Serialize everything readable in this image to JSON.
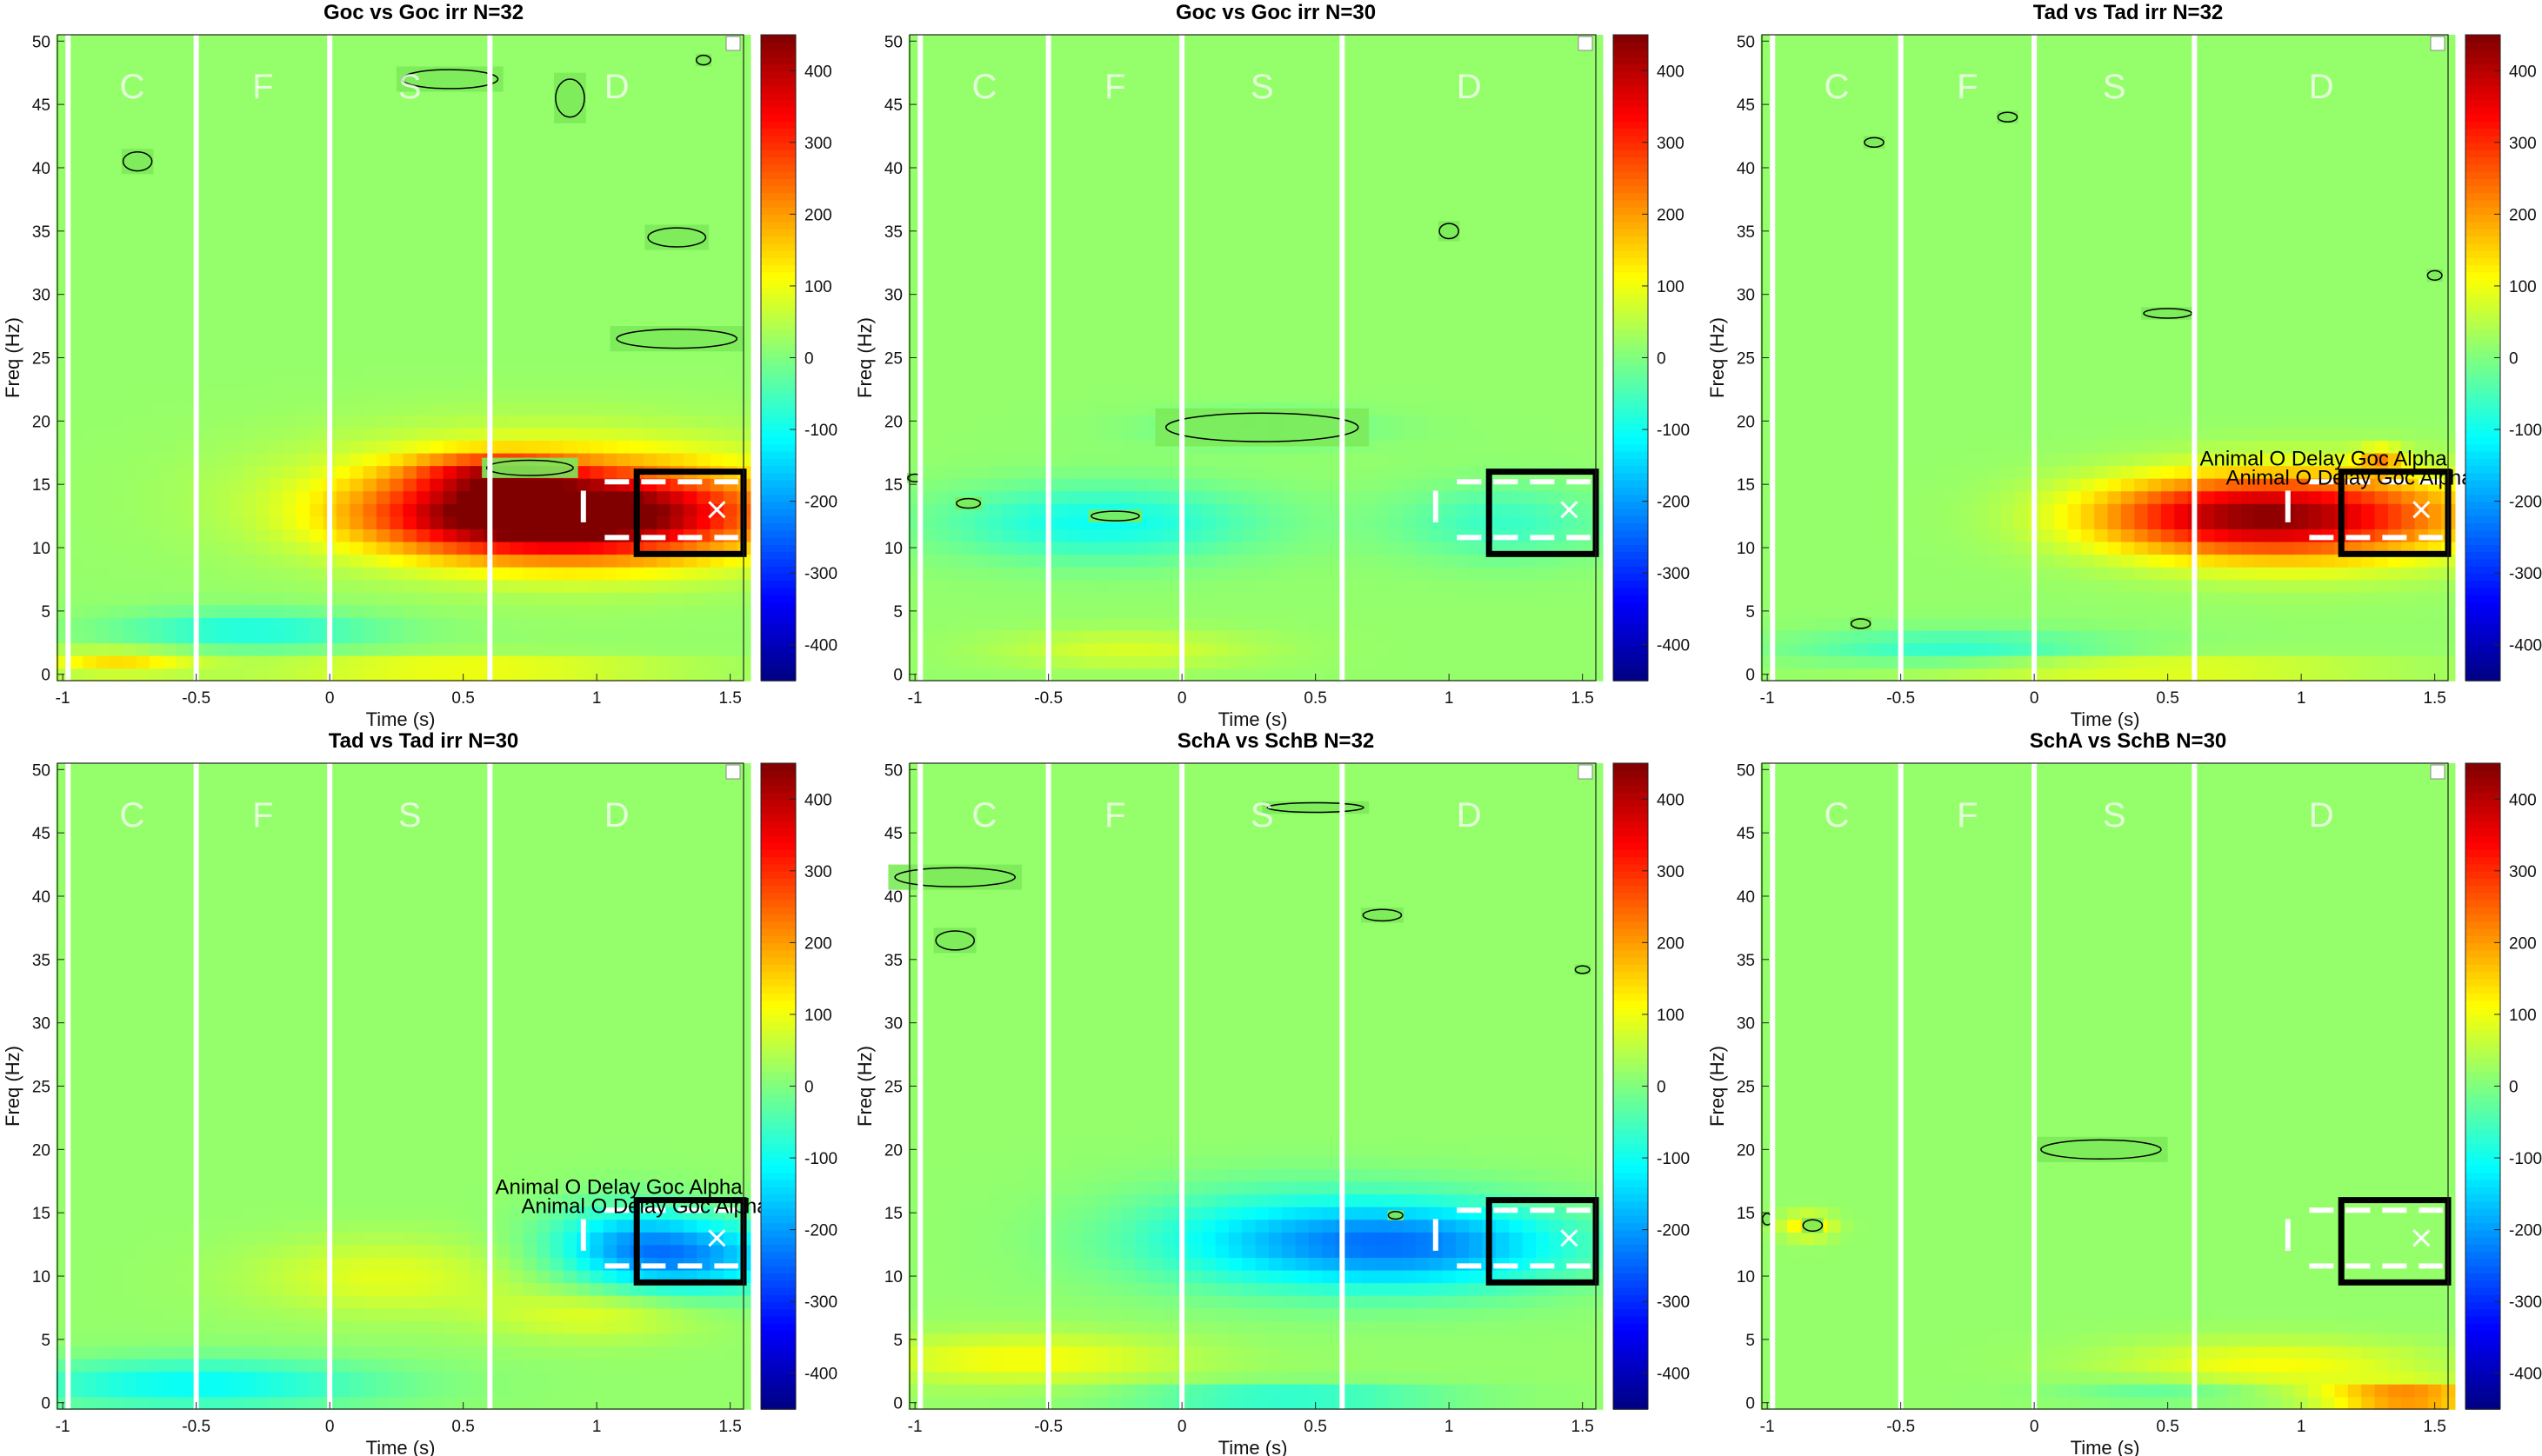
{
  "chart_data": [
    {
      "type": "heatmap",
      "title": "Goc vs Goc irr N=32",
      "xlabel": "Time (s)",
      "ylabel": "Freq (Hz)",
      "xlim": [
        -1.02,
        1.55
      ],
      "ylim": [
        -0.5,
        50.5
      ],
      "xticks": [
        "-1",
        "-0.5",
        "0",
        "0.5",
        "1",
        "1.5"
      ],
      "yticks": [
        "0",
        "5",
        "10",
        "15",
        "20",
        "25",
        "30",
        "35",
        "40",
        "45",
        "50"
      ],
      "colorbar": {
        "min": -450,
        "max": 450,
        "ticks": [
          "400",
          "300",
          "200",
          "100",
          "0",
          "-100",
          "-200",
          "-300",
          "-400"
        ]
      },
      "phase_markers": {
        "times": [
          -0.98,
          -0.5,
          0,
          0.6
        ],
        "labels": [
          "C",
          "F",
          "S",
          "D"
        ]
      },
      "roi": {
        "t0": 1.15,
        "t1": 1.55,
        "f0": 9.5,
        "f1": 16
      },
      "annotations": [],
      "blobs": [
        {
          "t": 1.05,
          "f": 12.5,
          "dt": 0.6,
          "df": 3.5,
          "v": 330
        },
        {
          "t": 0.55,
          "f": 12.5,
          "dt": 0.5,
          "df": 3,
          "v": 210
        },
        {
          "t": 0.6,
          "f": 16,
          "dt": 0.3,
          "df": 1.5,
          "v": 170
        },
        {
          "t": 0.8,
          "f": 14,
          "dt": 0.9,
          "df": 5,
          "v": 140
        },
        {
          "t": -0.3,
          "f": 3.5,
          "dt": 0.5,
          "df": 1.5,
          "v": -110
        },
        {
          "t": -0.8,
          "f": 1,
          "dt": 0.3,
          "df": 1,
          "v": 120
        },
        {
          "t": 0.5,
          "f": 0.5,
          "dt": 0.8,
          "df": 1,
          "v": 100
        }
      ],
      "sig": [
        {
          "t": -0.72,
          "f": 40.5,
          "dt": 0.06,
          "df": 1
        },
        {
          "t": 0.45,
          "f": 47,
          "dt": 0.2,
          "df": 1
        },
        {
          "t": 0.9,
          "f": 45.5,
          "dt": 0.06,
          "df": 2
        },
        {
          "t": 1.3,
          "f": 34.5,
          "dt": 0.12,
          "df": 1
        },
        {
          "t": 1.3,
          "f": 26.5,
          "dt": 0.25,
          "df": 1
        },
        {
          "t": 0.75,
          "f": 16.3,
          "dt": 0.18,
          "df": 0.8
        },
        {
          "t": 1.4,
          "f": 48.5,
          "dt": 0.03,
          "df": 0.5
        }
      ]
    },
    {
      "type": "heatmap",
      "title": "Goc vs Goc irr N=30",
      "xlabel": "Time (s)",
      "ylabel": "Freq (Hz)",
      "xlim": [
        -1.02,
        1.55
      ],
      "ylim": [
        -0.5,
        50.5
      ],
      "xticks": [
        "-1",
        "-0.5",
        "0",
        "0.5",
        "1",
        "1.5"
      ],
      "yticks": [
        "0",
        "5",
        "10",
        "15",
        "20",
        "25",
        "30",
        "35",
        "40",
        "45",
        "50"
      ],
      "colorbar": {
        "min": -450,
        "max": 450,
        "ticks": [
          "400",
          "300",
          "200",
          "100",
          "0",
          "-100",
          "-200",
          "-300",
          "-400"
        ]
      },
      "phase_markers": {
        "times": [
          -0.98,
          -0.5,
          0,
          0.6
        ],
        "labels": [
          "C",
          "F",
          "S",
          "D"
        ]
      },
      "roi": {
        "t0": 1.15,
        "t1": 1.55,
        "f0": 9.5,
        "f1": 16
      },
      "annotations": [],
      "blobs": [
        {
          "t": -0.3,
          "f": 12,
          "dt": 0.6,
          "df": 3,
          "v": -120
        },
        {
          "t": 0.3,
          "f": 19.5,
          "dt": 0.5,
          "df": 1.5,
          "v": -40
        },
        {
          "t": 1.2,
          "f": 12,
          "dt": 0.4,
          "df": 3,
          "v": -80
        },
        {
          "t": -0.2,
          "f": 2,
          "dt": 0.5,
          "df": 1.5,
          "v": 60
        }
      ],
      "sig": [
        {
          "t": -0.8,
          "f": 13.5,
          "dt": 0.05,
          "df": 0.5
        },
        {
          "t": -0.25,
          "f": 12.5,
          "dt": 0.1,
          "df": 0.5
        },
        {
          "t": 0.3,
          "f": 19.5,
          "dt": 0.4,
          "df": 1.5
        },
        {
          "t": 1.0,
          "f": 35,
          "dt": 0.04,
          "df": 0.8
        },
        {
          "t": -1.0,
          "f": 15.5,
          "dt": 0.03,
          "df": 0.4
        }
      ]
    },
    {
      "type": "heatmap",
      "title": "Tad vs Tad irr N=32",
      "xlabel": "Time (s)",
      "ylabel": "Freq (Hz)",
      "xlim": [
        -1.02,
        1.55
      ],
      "ylim": [
        -0.5,
        50.5
      ],
      "xticks": [
        "-1",
        "-0.5",
        "0",
        "0.5",
        "1",
        "1.5"
      ],
      "yticks": [
        "0",
        "5",
        "10",
        "15",
        "20",
        "25",
        "30",
        "35",
        "40",
        "45",
        "50"
      ],
      "colorbar": {
        "min": -450,
        "max": 450,
        "ticks": [
          "400",
          "300",
          "200",
          "100",
          "0",
          "-100",
          "-200",
          "-300",
          "-400"
        ]
      },
      "phase_markers": {
        "times": [
          -0.98,
          -0.5,
          0,
          0.6
        ],
        "labels": [
          "C",
          "F",
          "S",
          "D"
        ]
      },
      "roi": {
        "t0": 1.15,
        "t1": 1.55,
        "f0": 9.5,
        "f1": 16
      },
      "annotations": [
        "Animal O Delay Goc Alpha",
        "Animal O Delay Goc Alpha"
      ],
      "blobs": [
        {
          "t": 1.05,
          "f": 12.5,
          "dt": 0.6,
          "df": 3.5,
          "v": 320
        },
        {
          "t": 0.6,
          "f": 12.5,
          "dt": 0.5,
          "df": 3,
          "v": 180
        },
        {
          "t": 1.3,
          "f": 17,
          "dt": 0.08,
          "df": 1,
          "v": 150
        },
        {
          "t": -0.3,
          "f": 2,
          "dt": 0.6,
          "df": 1.5,
          "v": -90
        },
        {
          "t": 0.4,
          "f": 0.5,
          "dt": 0.9,
          "df": 1,
          "v": 90
        }
      ],
      "sig": [
        {
          "t": -0.6,
          "f": 42,
          "dt": 0.04,
          "df": 0.5
        },
        {
          "t": -0.1,
          "f": 44,
          "dt": 0.04,
          "df": 0.5
        },
        {
          "t": 0.5,
          "f": 28.5,
          "dt": 0.1,
          "df": 0.5
        },
        {
          "t": 1.5,
          "f": 31.5,
          "dt": 0.03,
          "df": 0.5
        },
        {
          "t": -0.65,
          "f": 4,
          "dt": 0.04,
          "df": 0.5
        }
      ]
    },
    {
      "type": "heatmap",
      "title": "Tad vs Tad irr N=30",
      "xlabel": "Time (s)",
      "ylabel": "Freq (Hz)",
      "xlim": [
        -1.02,
        1.55
      ],
      "ylim": [
        -0.5,
        50.5
      ],
      "xticks": [
        "-1",
        "-0.5",
        "0",
        "0.5",
        "1",
        "1.5"
      ],
      "yticks": [
        "0",
        "5",
        "10",
        "15",
        "20",
        "25",
        "30",
        "35",
        "40",
        "45",
        "50"
      ],
      "colorbar": {
        "min": -450,
        "max": 450,
        "ticks": [
          "400",
          "300",
          "200",
          "100",
          "0",
          "-100",
          "-200",
          "-300",
          "-400"
        ]
      },
      "phase_markers": {
        "times": [
          -0.98,
          -0.5,
          0,
          0.6
        ],
        "labels": [
          "C",
          "F",
          "S",
          "D"
        ]
      },
      "roi": {
        "t0": 1.15,
        "t1": 1.55,
        "f0": 9.5,
        "f1": 16
      },
      "annotations": [
        "Animal O Delay Goc Alpha",
        "Animal O Delay Goc Alpha"
      ],
      "blobs": [
        {
          "t": 1.35,
          "f": 11.5,
          "dt": 0.4,
          "df": 3,
          "v": -200
        },
        {
          "t": 1.1,
          "f": 13,
          "dt": 0.3,
          "df": 3,
          "v": -110
        },
        {
          "t": -0.5,
          "f": 1.5,
          "dt": 0.7,
          "df": 2,
          "v": -130
        },
        {
          "t": 0.2,
          "f": 10,
          "dt": 0.5,
          "df": 3,
          "v": 70
        },
        {
          "t": 1.0,
          "f": 7,
          "dt": 0.4,
          "df": 2,
          "v": 70
        }
      ],
      "sig": []
    },
    {
      "type": "heatmap",
      "title": "SchA vs SchB N=32",
      "xlabel": "Time (s)",
      "ylabel": "Freq (Hz)",
      "xlim": [
        -1.02,
        1.55
      ],
      "ylim": [
        -0.5,
        50.5
      ],
      "xticks": [
        "-1",
        "-0.5",
        "0",
        "0.5",
        "1",
        "1.5"
      ],
      "yticks": [
        "0",
        "5",
        "10",
        "15",
        "20",
        "25",
        "30",
        "35",
        "40",
        "45",
        "50"
      ],
      "colorbar": {
        "min": -450,
        "max": 450,
        "ticks": [
          "400",
          "300",
          "200",
          "100",
          "0",
          "-100",
          "-200",
          "-300",
          "-400"
        ]
      },
      "phase_markers": {
        "times": [
          -0.98,
          -0.5,
          0,
          0.6
        ],
        "labels": [
          "C",
          "F",
          "S",
          "D"
        ]
      },
      "roi": {
        "t0": 1.15,
        "t1": 1.55,
        "f0": 9.5,
        "f1": 16
      },
      "annotations": [],
      "blobs": [
        {
          "t": 0.9,
          "f": 12.5,
          "dt": 0.6,
          "df": 3.5,
          "v": -210
        },
        {
          "t": 0.3,
          "f": 13,
          "dt": 0.6,
          "df": 4,
          "v": -110
        },
        {
          "t": -0.6,
          "f": 3.5,
          "dt": 0.6,
          "df": 2,
          "v": 90
        },
        {
          "t": 0.4,
          "f": 0.5,
          "dt": 0.6,
          "df": 1,
          "v": -110
        }
      ],
      "sig": [
        {
          "t": -0.85,
          "f": 41.5,
          "dt": 0.25,
          "df": 1
        },
        {
          "t": -0.85,
          "f": 36.5,
          "dt": 0.08,
          "df": 1
        },
        {
          "t": 0.5,
          "f": 47,
          "dt": 0.2,
          "df": 0.5
        },
        {
          "t": 0.75,
          "f": 38.5,
          "dt": 0.08,
          "df": 0.6
        },
        {
          "t": 1.5,
          "f": 34.2,
          "dt": 0.03,
          "df": 0.4
        },
        {
          "t": 0.8,
          "f": 14.8,
          "dt": 0.03,
          "df": 0.4
        }
      ]
    },
    {
      "type": "heatmap",
      "title": "SchA vs SchB N=30",
      "xlabel": "Time (s)",
      "ylabel": "Freq (Hz)",
      "xlim": [
        -1.02,
        1.55
      ],
      "ylim": [
        -0.5,
        50.5
      ],
      "xticks": [
        "-1",
        "-0.5",
        "0",
        "0.5",
        "1",
        "1.5"
      ],
      "yticks": [
        "0",
        "5",
        "10",
        "15",
        "20",
        "25",
        "30",
        "35",
        "40",
        "45",
        "50"
      ],
      "colorbar": {
        "min": -450,
        "max": 450,
        "ticks": [
          "400",
          "300",
          "200",
          "100",
          "0",
          "-100",
          "-200",
          "-300",
          "-400"
        ]
      },
      "phase_markers": {
        "times": [
          -0.98,
          -0.5,
          0,
          0.6
        ],
        "labels": [
          "C",
          "F",
          "S",
          "D"
        ]
      },
      "roi": {
        "t0": 1.15,
        "t1": 1.55,
        "f0": 9.5,
        "f1": 16
      },
      "annotations": [],
      "blobs": [
        {
          "t": 1.4,
          "f": 0.5,
          "dt": 0.3,
          "df": 1,
          "v": 230
        },
        {
          "t": 0.9,
          "f": 3,
          "dt": 0.6,
          "df": 2,
          "v": 90
        },
        {
          "t": -0.85,
          "f": 14,
          "dt": 0.1,
          "df": 1,
          "v": 120
        },
        {
          "t": 0.5,
          "f": 1,
          "dt": 0.4,
          "df": 1,
          "v": -60
        }
      ],
      "sig": [
        {
          "t": 0.25,
          "f": 20,
          "dt": 0.25,
          "df": 1
        },
        {
          "t": -0.83,
          "f": 14,
          "dt": 0.04,
          "df": 0.6
        },
        {
          "t": -1.0,
          "f": 14.5,
          "dt": 0.02,
          "df": 0.6
        }
      ]
    }
  ]
}
